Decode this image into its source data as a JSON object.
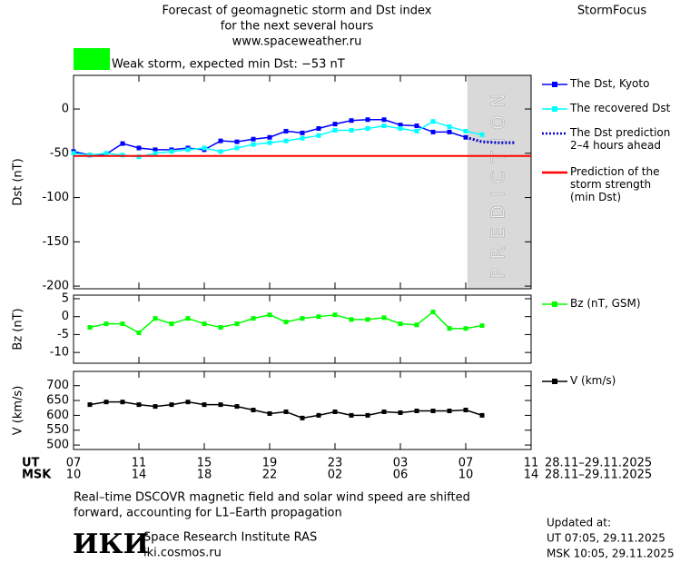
{
  "header": {
    "title": "Forecast of geomagnetic storm and Dst index",
    "subtitle": "for the next several hours",
    "url": "www.spaceweather.ru",
    "brand": "StormFocus",
    "storm_text": "Weak storm, expected min Dst: −53 nT",
    "storm_color": "#00ff00"
  },
  "chart_data": [
    {
      "type": "line",
      "ylabel": "Dst (nT)",
      "ylim": [
        -203,
        38
      ],
      "yticks": [
        0,
        -50,
        -100,
        -150,
        -200
      ],
      "prediction_band": {
        "label": "PREDICTION",
        "x": [
          24.1,
          28
        ],
        "color": "#d9d9d9"
      },
      "series": [
        {
          "name": "The Dst, Kyoto",
          "color": "#0000ff",
          "style": "markers",
          "x": [
            0,
            1,
            2,
            3,
            4,
            5,
            6,
            7,
            8,
            9,
            10,
            11,
            12,
            13,
            14,
            15,
            16,
            17,
            18,
            19,
            20,
            21,
            22,
            23,
            24
          ],
          "values": [
            -48,
            -52,
            -51,
            -39,
            -44,
            -46,
            -46,
            -44,
            -46,
            -36,
            -37,
            -34,
            -32,
            -25,
            -27,
            -22,
            -17,
            -13,
            -12,
            -12,
            -18,
            -19,
            -26,
            -26,
            -32
          ]
        },
        {
          "name": "The recovered Dst",
          "color": "#00ffff",
          "style": "markers",
          "x": [
            0,
            1,
            2,
            3,
            4,
            5,
            6,
            7,
            8,
            9,
            10,
            11,
            12,
            13,
            14,
            15,
            16,
            17,
            18,
            19,
            20,
            21,
            22,
            23,
            24,
            25
          ],
          "values": [
            -50,
            -52,
            -50,
            -52,
            -54,
            -50,
            -48,
            -46,
            -44,
            -48,
            -44,
            -40,
            -38,
            -36,
            -33,
            -30,
            -24,
            -24,
            -22,
            -19,
            -22,
            -25,
            -14,
            -20,
            -25,
            -29
          ]
        },
        {
          "name": "The Dst prediction\n2–4 hours ahead",
          "color": "#0000cc",
          "style": "dotted",
          "x": [
            24,
            25,
            26,
            27
          ],
          "values": [
            -32,
            -37,
            -38,
            -38
          ]
        },
        {
          "name": "Prediction of the\nstorm strength\n(min Dst)",
          "color": "#ff0000",
          "style": "hline",
          "values": [
            -53
          ]
        }
      ]
    },
    {
      "type": "line",
      "ylabel": "Bz (nT)",
      "ylim": [
        -13,
        6
      ],
      "yticks": [
        5,
        0,
        -5,
        -10
      ],
      "series": [
        {
          "name": "Bz (nT, GSM)",
          "color": "#00ff00",
          "style": "markers",
          "x": [
            1,
            2,
            3,
            4,
            5,
            6,
            7,
            8,
            9,
            10,
            11,
            12,
            13,
            14,
            15,
            16,
            17,
            18,
            19,
            20,
            21,
            22,
            23,
            24,
            25
          ],
          "values": [
            -3,
            -2,
            -2,
            -4.5,
            -0.5,
            -2,
            -0.5,
            -2,
            -3,
            -2,
            -0.5,
            0.5,
            -1.5,
            -0.5,
            0,
            0.5,
            -0.8,
            -0.8,
            -0.3,
            -2,
            -2.3,
            1.3,
            -3.3,
            -3.3,
            -2.5
          ]
        }
      ]
    },
    {
      "type": "line",
      "ylabel": "V (km/s)",
      "ylim": [
        485,
        748
      ],
      "yticks": [
        700,
        650,
        600,
        550,
        500
      ],
      "xlim": [
        0,
        28
      ],
      "xticks": [
        {
          "value": 0,
          "label": "07"
        },
        {
          "value": 4,
          "label": "11"
        },
        {
          "value": 8,
          "label": "15"
        },
        {
          "value": 12,
          "label": "19"
        },
        {
          "value": 16,
          "label": "23"
        },
        {
          "value": 20,
          "label": "03"
        },
        {
          "value": 24,
          "label": "07"
        },
        {
          "value": 28,
          "label": "11"
        }
      ],
      "xticks_msk": [
        "10",
        "14",
        "18",
        "22",
        "02",
        "06",
        "10",
        "14"
      ],
      "x_row_labels": [
        "UT",
        "MSK"
      ],
      "x_ranges": [
        "28.11–29.11.2025",
        "28.11–29.11.2025"
      ],
      "series": [
        {
          "name": "V (km/s)",
          "color": "#000000",
          "style": "markers",
          "x": [
            1,
            2,
            3,
            4,
            5,
            6,
            7,
            8,
            9,
            10,
            11,
            12,
            13,
            14,
            15,
            16,
            17,
            18,
            19,
            20,
            21,
            22,
            23,
            24,
            25
          ],
          "values": [
            636,
            645,
            645,
            636,
            630,
            636,
            645,
            636,
            636,
            630,
            618,
            606,
            612,
            591,
            600,
            612,
            600,
            600,
            612,
            609,
            615,
            615,
            615,
            618,
            600
          ]
        }
      ]
    }
  ],
  "footer": {
    "note": [
      "Real–time DSCOVR magnetic field and solar wind speed are shifted",
      "forward, accounting for L1–Earth propagation"
    ],
    "logo": "ИКИ",
    "institute": "Space Research Institute RAS",
    "site": "iki.cosmos.ru",
    "updated": [
      "Updated at:",
      "UT  07:05, 29.11.2025",
      "MSK 10:05, 29.11.2025"
    ]
  }
}
